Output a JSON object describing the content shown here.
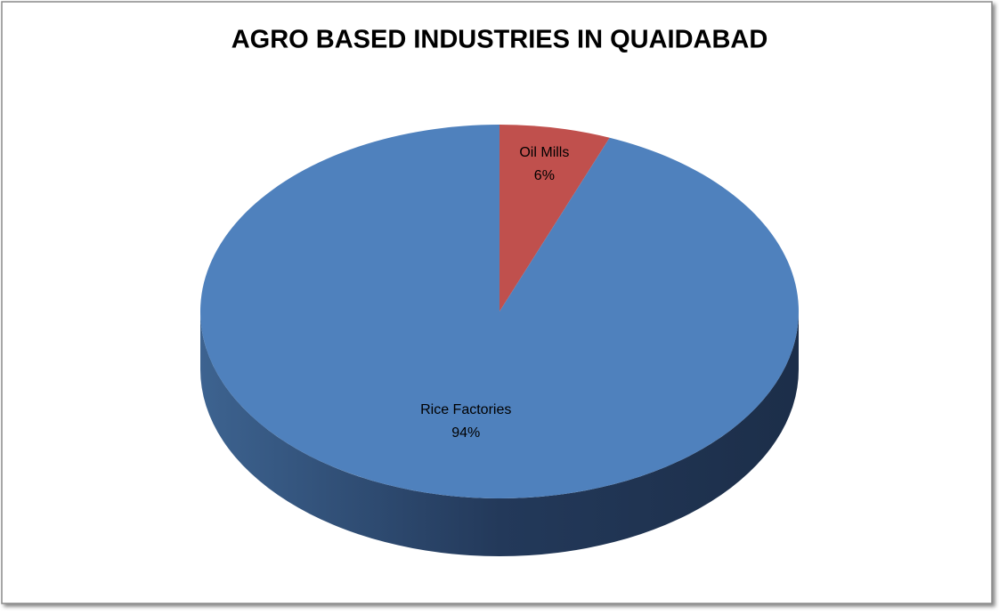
{
  "chart_data": {
    "type": "pie",
    "title": "AGRO BASED INDUSTRIES IN QUAIDABAD",
    "categories": [
      "Oil Mills",
      "Rice Factories"
    ],
    "values": [
      6,
      94
    ],
    "value_labels": [
      "6%",
      "94%"
    ],
    "colors": [
      "#c0504d",
      "#4f81bd"
    ]
  }
}
